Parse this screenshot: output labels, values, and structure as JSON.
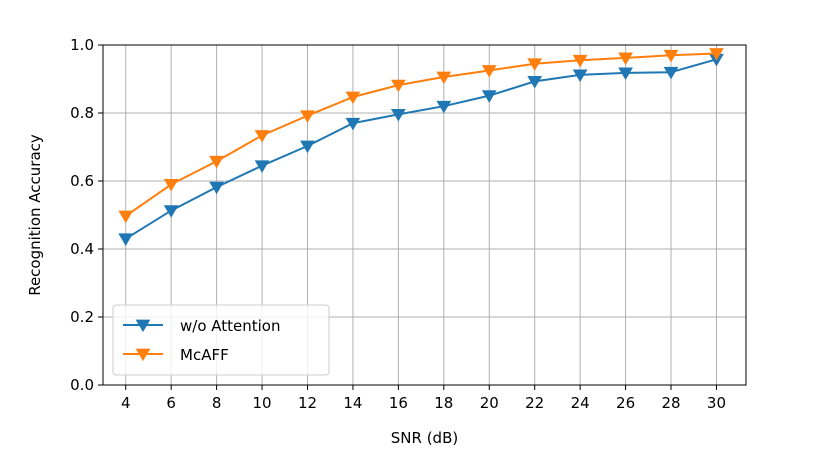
{
  "chart_data": {
    "type": "line",
    "title": "",
    "xlabel": "SNR (dB)",
    "ylabel": "Recognition Accuracy",
    "x": [
      4,
      6,
      8,
      10,
      12,
      14,
      16,
      18,
      20,
      22,
      24,
      26,
      28,
      30
    ],
    "xlim": [
      3,
      31.3
    ],
    "ylim": [
      0.0,
      1.0
    ],
    "xticks": [
      "4",
      "6",
      "8",
      "10",
      "12",
      "14",
      "16",
      "18",
      "20",
      "22",
      "24",
      "26",
      "28",
      "30"
    ],
    "yticks": [
      "0.0",
      "0.2",
      "0.4",
      "0.6",
      "0.8",
      "1.0"
    ],
    "grid": true,
    "legend_location": "lower-left",
    "series": [
      {
        "name": "w/o Attention",
        "color": "#1f77b4",
        "marker": "triangle-down",
        "values": [
          0.43,
          0.513,
          0.582,
          0.645,
          0.703,
          0.77,
          0.796,
          0.82,
          0.851,
          0.893,
          0.912,
          0.918,
          0.92,
          0.958
        ]
      },
      {
        "name": "McAFF",
        "color": "#ff7f0e",
        "marker": "triangle-down",
        "values": [
          0.497,
          0.59,
          0.658,
          0.734,
          0.792,
          0.847,
          0.882,
          0.906,
          0.925,
          0.945,
          0.955,
          0.962,
          0.97,
          0.975
        ]
      }
    ]
  }
}
